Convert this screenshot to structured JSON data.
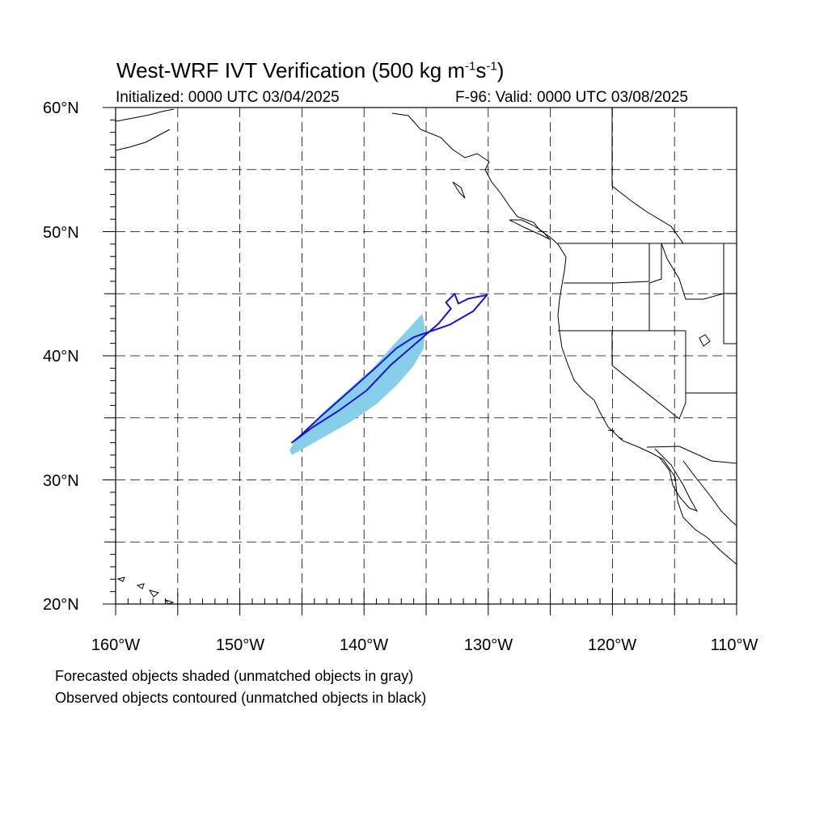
{
  "title": {
    "main": "West-WRF IVT Verification (500 kg m",
    "exp1": "-1",
    "mid": "s",
    "exp2": "-1",
    "close": ")"
  },
  "initialized": "Initialized: 0000 UTC 03/04/2025",
  "valid": "F-96: Valid: 0000 UTC 03/08/2025",
  "lat_labels": [
    "60°N",
    "50°N",
    "40°N",
    "30°N",
    "20°N"
  ],
  "lon_labels": [
    "160°W",
    "150°W",
    "140°W",
    "130°W",
    "120°W",
    "110°W"
  ],
  "notes": {
    "line1": "Forecasted objects shaded (unmatched objects in gray)",
    "line2": "Observed objects contoured (unmatched objects in black)"
  },
  "colors": {
    "forecast_fill": "#87ceeb",
    "observed_contour": "#1414d2",
    "coastline": "#000000",
    "grid": "#000000"
  },
  "map_extent": {
    "lon": [
      -160,
      -110
    ],
    "lat": [
      20,
      60
    ]
  },
  "forecast_object": {
    "lonlat": [
      [
        -145.8,
        32.0
      ],
      [
        -143.5,
        33.3
      ],
      [
        -141.2,
        34.6
      ],
      [
        -139.0,
        36.1
      ],
      [
        -137.3,
        37.7
      ],
      [
        -136.0,
        39.2
      ],
      [
        -135.2,
        40.6
      ],
      [
        -135.1,
        42.2
      ],
      [
        -135.3,
        43.4
      ],
      [
        -136.4,
        42.2
      ],
      [
        -137.7,
        40.8
      ],
      [
        -139.3,
        39.0
      ],
      [
        -141.0,
        37.5
      ],
      [
        -143.0,
        35.7
      ],
      [
        -145.5,
        33.2
      ],
      [
        -146.0,
        32.4
      ]
    ]
  },
  "observed_object": {
    "lonlat": [
      [
        -145.8,
        33.0
      ],
      [
        -144.2,
        34.2
      ],
      [
        -142.0,
        35.6
      ],
      [
        -139.8,
        37.2
      ],
      [
        -137.8,
        39.3
      ],
      [
        -135.6,
        41.2
      ],
      [
        -134.0,
        42.6
      ],
      [
        -133.0,
        43.8
      ],
      [
        -133.4,
        44.3
      ],
      [
        -132.7,
        45.0
      ],
      [
        -132.4,
        44.2
      ],
      [
        -131.6,
        44.6
      ],
      [
        -130.1,
        44.9
      ],
      [
        -131.2,
        43.6
      ],
      [
        -133.1,
        42.5
      ],
      [
        -136.0,
        41.5
      ],
      [
        -137.4,
        40.6
      ],
      [
        -139.0,
        39.1
      ],
      [
        -141.0,
        37.3
      ],
      [
        -143.5,
        35.1
      ],
      [
        -145.2,
        33.5
      ]
    ]
  }
}
